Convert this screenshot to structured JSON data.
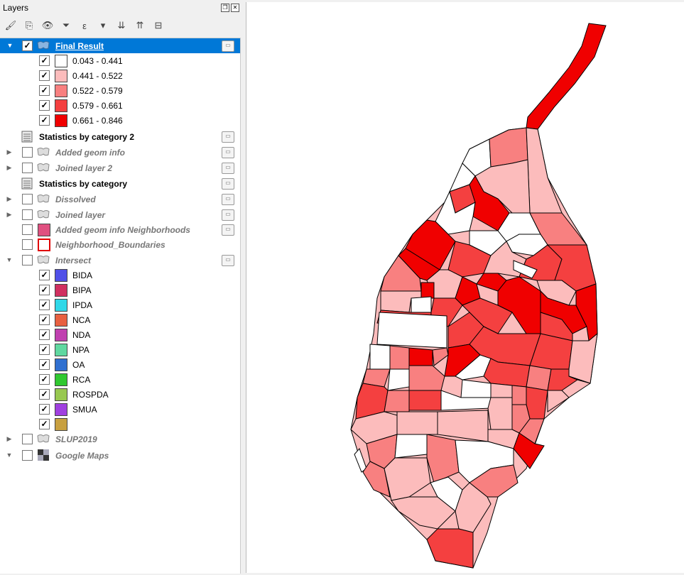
{
  "panel": {
    "title": "Layers"
  },
  "toolbar": {
    "items": [
      "open-layer-styling-icon",
      "add-group-icon",
      "manage-visibility-icon",
      "filter-legend-icon",
      "filter-by-expression-icon",
      "expand-all-icon",
      "collapse-all-icon",
      "remove-layer-icon"
    ]
  },
  "layers": {
    "final_result": {
      "name": "Final Result",
      "classes": [
        {
          "label": "0.043 - 0.441",
          "color": "#ffffff"
        },
        {
          "label": "0.441 - 0.522",
          "color": "#fcbcbc"
        },
        {
          "label": "0.522 - 0.579",
          "color": "#f88080"
        },
        {
          "label": "0.579 - 0.661",
          "color": "#f44040"
        },
        {
          "label": "0.661 - 0.846",
          "color": "#f00000"
        }
      ]
    },
    "stats2": {
      "name": "Statistics by category 2"
    },
    "added_geom": {
      "name": "Added geom info"
    },
    "joined2": {
      "name": "Joined layer 2"
    },
    "stats": {
      "name": "Statistics by category"
    },
    "dissolved": {
      "name": "Dissolved"
    },
    "joined": {
      "name": "Joined layer"
    },
    "added_geom_nb": {
      "name": "Added geom info Neighborhoods",
      "color": "#e05080"
    },
    "nb_boundaries": {
      "name": "Neighborhood_Boundaries",
      "color": "#e00000"
    },
    "intersect": {
      "name": "Intersect",
      "classes": [
        {
          "label": "BIDA",
          "color": "#5050e8"
        },
        {
          "label": "BIPA",
          "color": "#d03060"
        },
        {
          "label": "IPDA",
          "color": "#30d8e8"
        },
        {
          "label": "NCA",
          "color": "#e86040"
        },
        {
          "label": "NDA",
          "color": "#c040b0"
        },
        {
          "label": "NPA",
          "color": "#60d8a0"
        },
        {
          "label": "OA",
          "color": "#3070d0"
        },
        {
          "label": "RCA",
          "color": "#30c830"
        },
        {
          "label": "ROSPDA",
          "color": "#98c850"
        },
        {
          "label": "SMUA",
          "color": "#a040e0"
        },
        {
          "label": "",
          "color": "#c8a040"
        }
      ]
    },
    "slup": {
      "name": "SLUP2019"
    },
    "google": {
      "name": "Google Maps"
    }
  }
}
